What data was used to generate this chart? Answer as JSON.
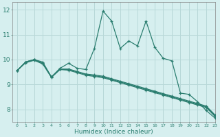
{
  "x": [
    0,
    1,
    2,
    3,
    4,
    5,
    6,
    7,
    8,
    9,
    10,
    11,
    12,
    13,
    14,
    15,
    16,
    17,
    18,
    19,
    20,
    21,
    22,
    23
  ],
  "line_spiky": [
    9.55,
    9.9,
    10.0,
    9.9,
    9.3,
    9.65,
    9.85,
    9.65,
    9.6,
    10.45,
    11.95,
    11.55,
    10.45,
    10.75,
    10.55,
    11.55,
    10.5,
    10.05,
    9.95,
    8.65,
    8.6,
    8.3,
    7.95,
    7.65
  ],
  "line_a": [
    9.55,
    9.9,
    10.0,
    9.85,
    9.3,
    9.6,
    9.6,
    9.5,
    9.4,
    9.35,
    9.3,
    9.2,
    9.1,
    9.0,
    8.9,
    8.8,
    8.7,
    8.6,
    8.5,
    8.4,
    8.3,
    8.2,
    8.1,
    7.75
  ],
  "line_b": [
    9.55,
    9.87,
    9.97,
    9.82,
    9.28,
    9.6,
    9.57,
    9.47,
    9.37,
    9.32,
    9.27,
    9.17,
    9.07,
    8.97,
    8.87,
    8.77,
    8.67,
    8.57,
    8.47,
    8.37,
    8.27,
    8.17,
    8.07,
    7.72
  ],
  "line_c": [
    9.55,
    9.9,
    10.0,
    9.85,
    9.3,
    9.62,
    9.62,
    9.52,
    9.42,
    9.38,
    9.33,
    9.23,
    9.13,
    9.03,
    8.93,
    8.83,
    8.73,
    8.63,
    8.53,
    8.43,
    8.33,
    8.23,
    8.13,
    7.78
  ],
  "line_color": "#2a7d6f",
  "bg_color": "#d6efef",
  "grid_color": "#b8d8d8",
  "xlabel": "Humidex (Indice chaleur)",
  "ylim": [
    7.5,
    12.3
  ],
  "xlim": [
    -0.5,
    23
  ],
  "yticks": [
    8,
    9,
    10,
    11,
    12
  ],
  "xticks": [
    0,
    1,
    2,
    3,
    4,
    5,
    6,
    7,
    8,
    9,
    10,
    11,
    12,
    13,
    14,
    15,
    16,
    17,
    18,
    19,
    20,
    21,
    22,
    23
  ]
}
